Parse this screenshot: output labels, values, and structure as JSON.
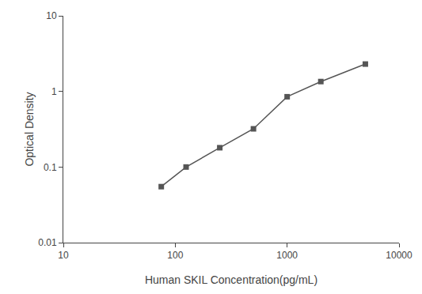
{
  "chart_data": {
    "type": "line",
    "x": [
      75,
      125,
      250,
      500,
      1000,
      2000,
      5000
    ],
    "values": [
      0.055,
      0.1,
      0.18,
      0.32,
      0.85,
      1.35,
      2.3
    ],
    "xlabel": "Human SKIL Concentration(pg/mL)",
    "ylabel": "Optical Density",
    "log": true,
    "xlim": [
      10,
      10000
    ],
    "ylim": [
      0.01,
      10
    ],
    "xticks": [
      10,
      100,
      1000,
      10000
    ],
    "yticks": [
      0.01,
      0.1,
      1,
      10
    ],
    "color": "#555555",
    "marker": "square",
    "line_style": "solid",
    "grid": false
  }
}
